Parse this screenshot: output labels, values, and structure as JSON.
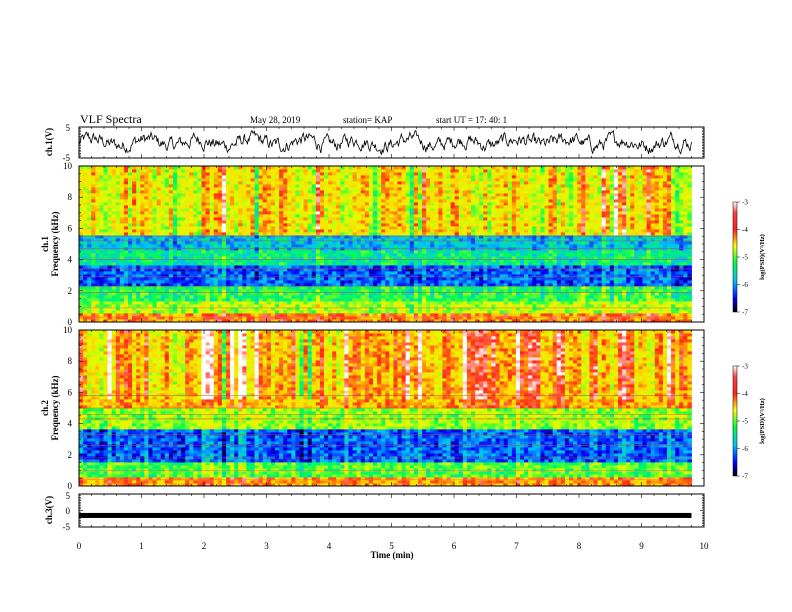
{
  "header": {
    "title": "VLF Spectra",
    "date": "May 28, 2019",
    "station": "station= KAP",
    "start": "start  UT =   17: 40: 1"
  },
  "chart_data": [
    {
      "type": "line",
      "panel": "ch1-waveform",
      "ylabel": "ch.1(V)",
      "ylim": [
        -5,
        5
      ],
      "y_tick_labels": [
        "5",
        "-5"
      ],
      "xlim": [
        0,
        10
      ],
      "x_unit": "min",
      "data_range_x": [
        0,
        9.8
      ],
      "description_values": "noise-like trace fluctuating approx between -3.5 and 3.5 V",
      "color": "#000000"
    },
    {
      "type": "heatmap",
      "panel": "ch1-spectrogram",
      "ylabel_line1": "ch.1",
      "ylabel_line2": "Frequency  (kHz)",
      "ylim": [
        0,
        10
      ],
      "y_tick_labels": [
        "0",
        "2",
        "4",
        "6",
        "8",
        "10"
      ],
      "xlim": [
        0,
        10
      ],
      "data_range_x": [
        0,
        9.8
      ],
      "colorbar": {
        "range": [
          -7,
          -3
        ],
        "tick_labels": [
          "-3",
          "-4",
          "-5",
          "-6",
          "-7"
        ],
        "label": "log(PSD)(V²/Hz)"
      },
      "bands_khz": [
        {
          "from": 0,
          "to": 0.5,
          "level": -3.8
        },
        {
          "from": 0.5,
          "to": 1.4,
          "level": -4.7
        },
        {
          "from": 1.4,
          "to": 2.4,
          "level": -5.2
        },
        {
          "from": 2.4,
          "to": 3.6,
          "level": -6.2
        },
        {
          "from": 3.6,
          "to": 4.6,
          "level": -5.4
        },
        {
          "from": 4.6,
          "to": 5.6,
          "level": -5.8
        },
        {
          "from": 5.6,
          "to": 10,
          "level": -4.3
        }
      ]
    },
    {
      "type": "heatmap",
      "panel": "ch2-spectrogram",
      "ylabel_line1": "ch.2",
      "ylabel_line2": "Frequency  (kHz)",
      "ylim": [
        0,
        10
      ],
      "y_tick_labels": [
        "0",
        "2",
        "4",
        "6",
        "8",
        "10"
      ],
      "xlim": [
        0,
        10
      ],
      "data_range_x": [
        0,
        9.8
      ],
      "colorbar": {
        "range": [
          -7,
          -3
        ],
        "tick_labels": [
          "-3",
          "-4",
          "-5",
          "-6",
          "-7"
        ],
        "label": "log(PSD)(V²/Hz)"
      },
      "bands_khz": [
        {
          "from": 0,
          "to": 0.6,
          "level": -3.9
        },
        {
          "from": 0.6,
          "to": 1.6,
          "level": -5.0
        },
        {
          "from": 1.6,
          "to": 3.6,
          "level": -6.2
        },
        {
          "from": 3.6,
          "to": 5.0,
          "level": -4.8
        },
        {
          "from": 5.0,
          "to": 10,
          "level": -4.0
        }
      ]
    },
    {
      "type": "line",
      "panel": "ch3-waveform",
      "ylabel": "ch.3(V)",
      "ylim": [
        -5,
        5
      ],
      "y_tick_labels": [
        "5",
        "0",
        "-5"
      ],
      "xlim": [
        0,
        10
      ],
      "data_range_x": [
        0,
        9.8
      ],
      "constant_value": -1.5,
      "color": "#000000"
    }
  ],
  "x_axis": {
    "label": "Time  (min)",
    "tick_labels": [
      "0",
      "1",
      "2",
      "3",
      "4",
      "5",
      "6",
      "7",
      "8",
      "9",
      "10"
    ]
  }
}
